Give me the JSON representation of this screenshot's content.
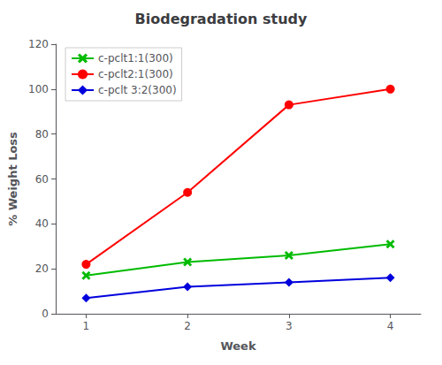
{
  "chart_data": {
    "type": "line",
    "title": "Biodegradation study",
    "x_label": "Week",
    "y_label": "% Weight Loss",
    "x": [
      1,
      2,
      3,
      4
    ],
    "series": [
      {
        "name": "c-pclt1:1(300)",
        "color": "#00bb00",
        "marker": "x",
        "values": [
          17,
          23,
          26,
          31
        ]
      },
      {
        "name": "c-pclt2:1(300)",
        "color": "#ff0000",
        "marker": "circle",
        "values": [
          22,
          54,
          93,
          100
        ]
      },
      {
        "name": "c-pclt 3:2(300)",
        "color": "#0000dd",
        "marker": "diamond",
        "values": [
          7,
          12,
          14,
          16
        ]
      }
    ],
    "xlim": [
      0.7,
      4.3
    ],
    "xticks": [
      1,
      2,
      3,
      4
    ],
    "ylim": [
      0,
      120
    ],
    "yticks": [
      0,
      20,
      40,
      60,
      80,
      100,
      120
    ],
    "grid": false,
    "legend": "upper left"
  }
}
